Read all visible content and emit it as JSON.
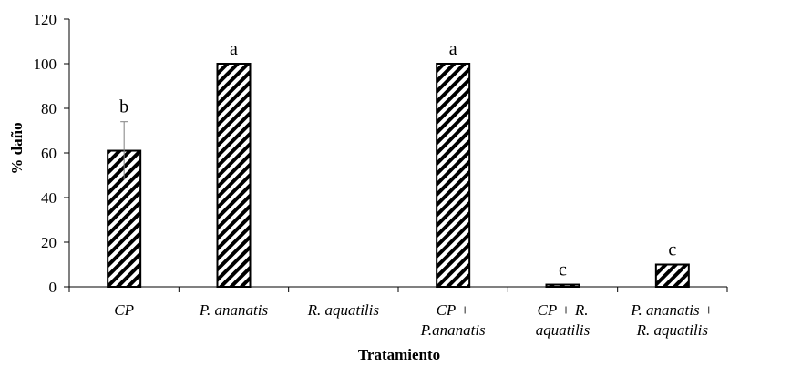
{
  "chart_data": {
    "type": "bar",
    "title": "",
    "xlabel": "Tratamiento",
    "ylabel": "% daño",
    "ylim": [
      0,
      120
    ],
    "yticks": [
      0,
      20,
      40,
      60,
      80,
      100,
      120
    ],
    "grid": false,
    "legend": "none",
    "bar_style": "diagonal-hatch",
    "categories": [
      [
        "CP"
      ],
      [
        "P. ananatis"
      ],
      [
        "R. aquatilis"
      ],
      [
        "CP +",
        "P.ananatis"
      ],
      [
        "CP + R.",
        "aquatilis"
      ],
      [
        "P. ananatis +",
        "R. aquatilis"
      ]
    ],
    "values": [
      61,
      100,
      0,
      100,
      1,
      10
    ],
    "error": [
      13,
      0,
      0,
      0,
      0,
      0
    ],
    "significance_letters": [
      "b",
      "a",
      "",
      "a",
      "c",
      "c"
    ]
  }
}
